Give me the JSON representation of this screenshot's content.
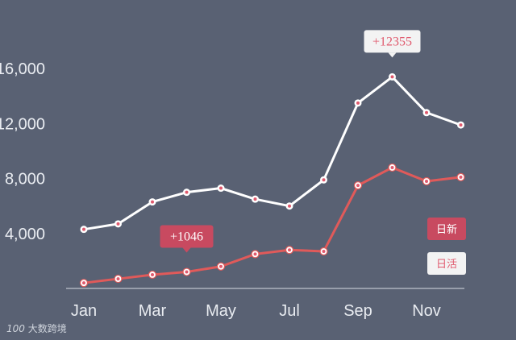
{
  "colors": {
    "background": "#596173",
    "active_series": "#ffffff",
    "new_series": "#e05a5a",
    "marker_center": "#e05a6e",
    "axis": "#d8dce3",
    "tick_text": "#e9ecf1",
    "annotation_new_bg": "#c84a60",
    "annotation_active_bg": "#f3f3f3",
    "annotation_active_text": "#e05a6e"
  },
  "chart_data": {
    "type": "line",
    "title": "",
    "xlabel": "",
    "ylabel": "",
    "x": [
      "Jan",
      "Feb",
      "Mar",
      "Apr",
      "May",
      "Jun",
      "Jul",
      "Aug",
      "Sep",
      "Oct",
      "Nov",
      "Dec"
    ],
    "x_tick_labels": [
      "Jan",
      "Mar",
      "May",
      "Jul",
      "Sep",
      "Nov"
    ],
    "y_tick_labels": [
      "4,000",
      "8,000",
      "12,000",
      "16,000"
    ],
    "y_ticks": [
      4000,
      8000,
      12000,
      16000
    ],
    "ylim": [
      0,
      18000
    ],
    "grid": false,
    "legend_position": "bottom-right",
    "series": [
      {
        "name": "日活",
        "values": [
          4300,
          4700,
          6300,
          7000,
          7300,
          6500,
          6000,
          7900,
          13500,
          15400,
          12800,
          11900
        ]
      },
      {
        "name": "日新",
        "values": [
          400,
          700,
          1000,
          1200,
          1600,
          2500,
          2800,
          2700,
          7500,
          8800,
          7800,
          8100
        ]
      }
    ],
    "annotations": [
      {
        "text": "+12355",
        "series": "日活",
        "x": "Oct"
      },
      {
        "text": "+1046",
        "series": "日新",
        "x": "Apr"
      }
    ]
  },
  "watermark": {
    "text": "大数跨境",
    "logo": "100"
  }
}
